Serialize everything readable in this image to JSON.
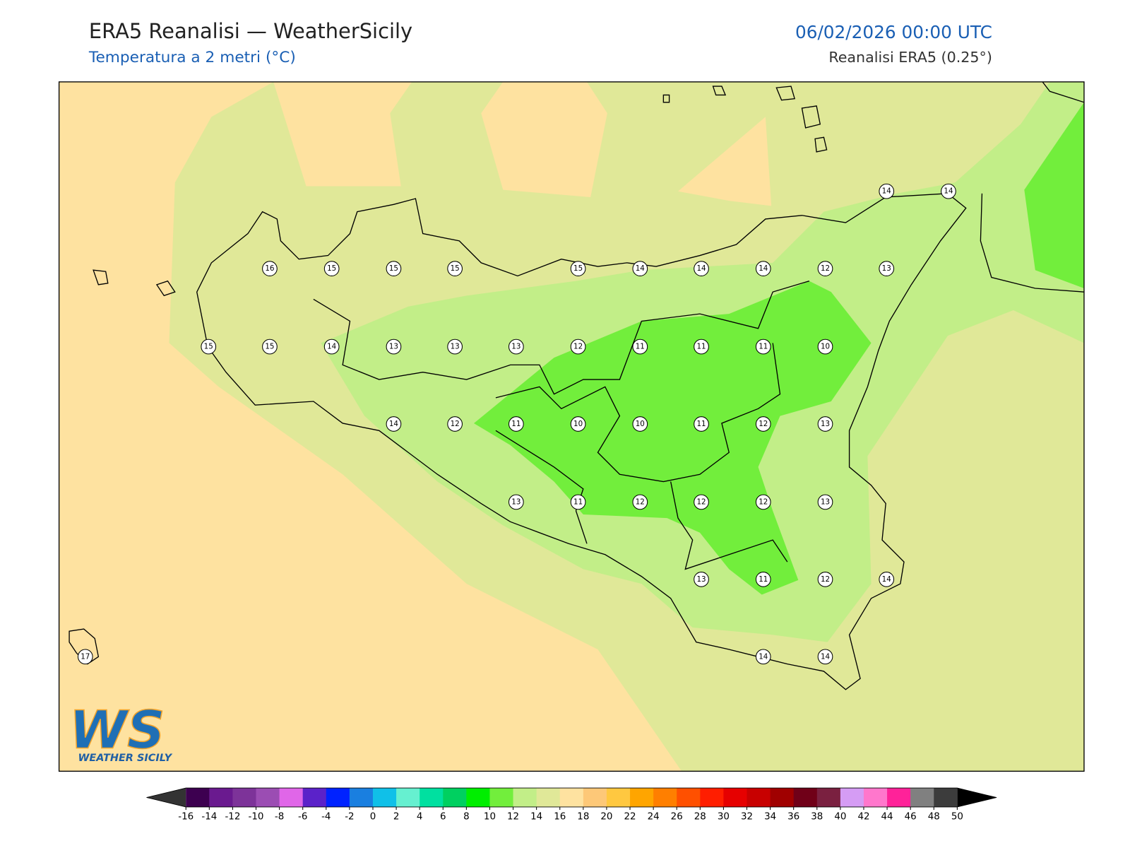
{
  "header": {
    "title": "ERA5 Reanalisi — WeatherSicily",
    "subtitle": "Temperatura a 2 metri (°C)",
    "datetime": "06/02/2026 00:00 UTC",
    "source": "Reanalisi ERA5 (0.25°)"
  },
  "station_values": [
    14,
    14,
    16,
    15,
    15,
    15,
    15,
    14,
    14,
    14,
    12,
    13,
    15,
    15,
    14,
    13,
    13,
    13,
    12,
    11,
    11,
    11,
    10,
    14,
    12,
    11,
    10,
    10,
    11,
    12,
    13,
    13,
    11,
    12,
    12,
    12,
    13,
    13,
    11,
    12,
    14,
    17,
    14,
    14
  ],
  "logo": {
    "text": "WS",
    "caption": "WEATHER SICILY"
  },
  "colorbar": {
    "ticks": [
      -16,
      -14,
      -12,
      -10,
      -8,
      -6,
      -4,
      -2,
      0,
      2,
      4,
      6,
      8,
      10,
      12,
      14,
      16,
      18,
      20,
      22,
      24,
      26,
      28,
      30,
      32,
      34,
      36,
      38,
      40,
      42,
      44,
      46,
      48,
      50
    ],
    "colors": [
      "#3d0050",
      "#6a1a8f",
      "#7d3399",
      "#9b4db3",
      "#e066e8",
      "#5b22c9",
      "#0022ff",
      "#1a7fe0",
      "#10c0e8",
      "#66f0d0",
      "#00e0a0",
      "#00d060",
      "#00ee00",
      "#72ee3c",
      "#c2ee88",
      "#e0e898",
      "#fee2a0",
      "#fdc878",
      "#ffc840",
      "#ffa500",
      "#ff7f00",
      "#ff5000",
      "#ff1e00",
      "#e60000",
      "#c80000",
      "#a00000",
      "#700018",
      "#7a2040",
      "#d59cf4",
      "#ff77cc",
      "#ff2299",
      "#808080",
      "#3c3c3c"
    ],
    "under_color": "#333333",
    "over_color": "#000000"
  }
}
